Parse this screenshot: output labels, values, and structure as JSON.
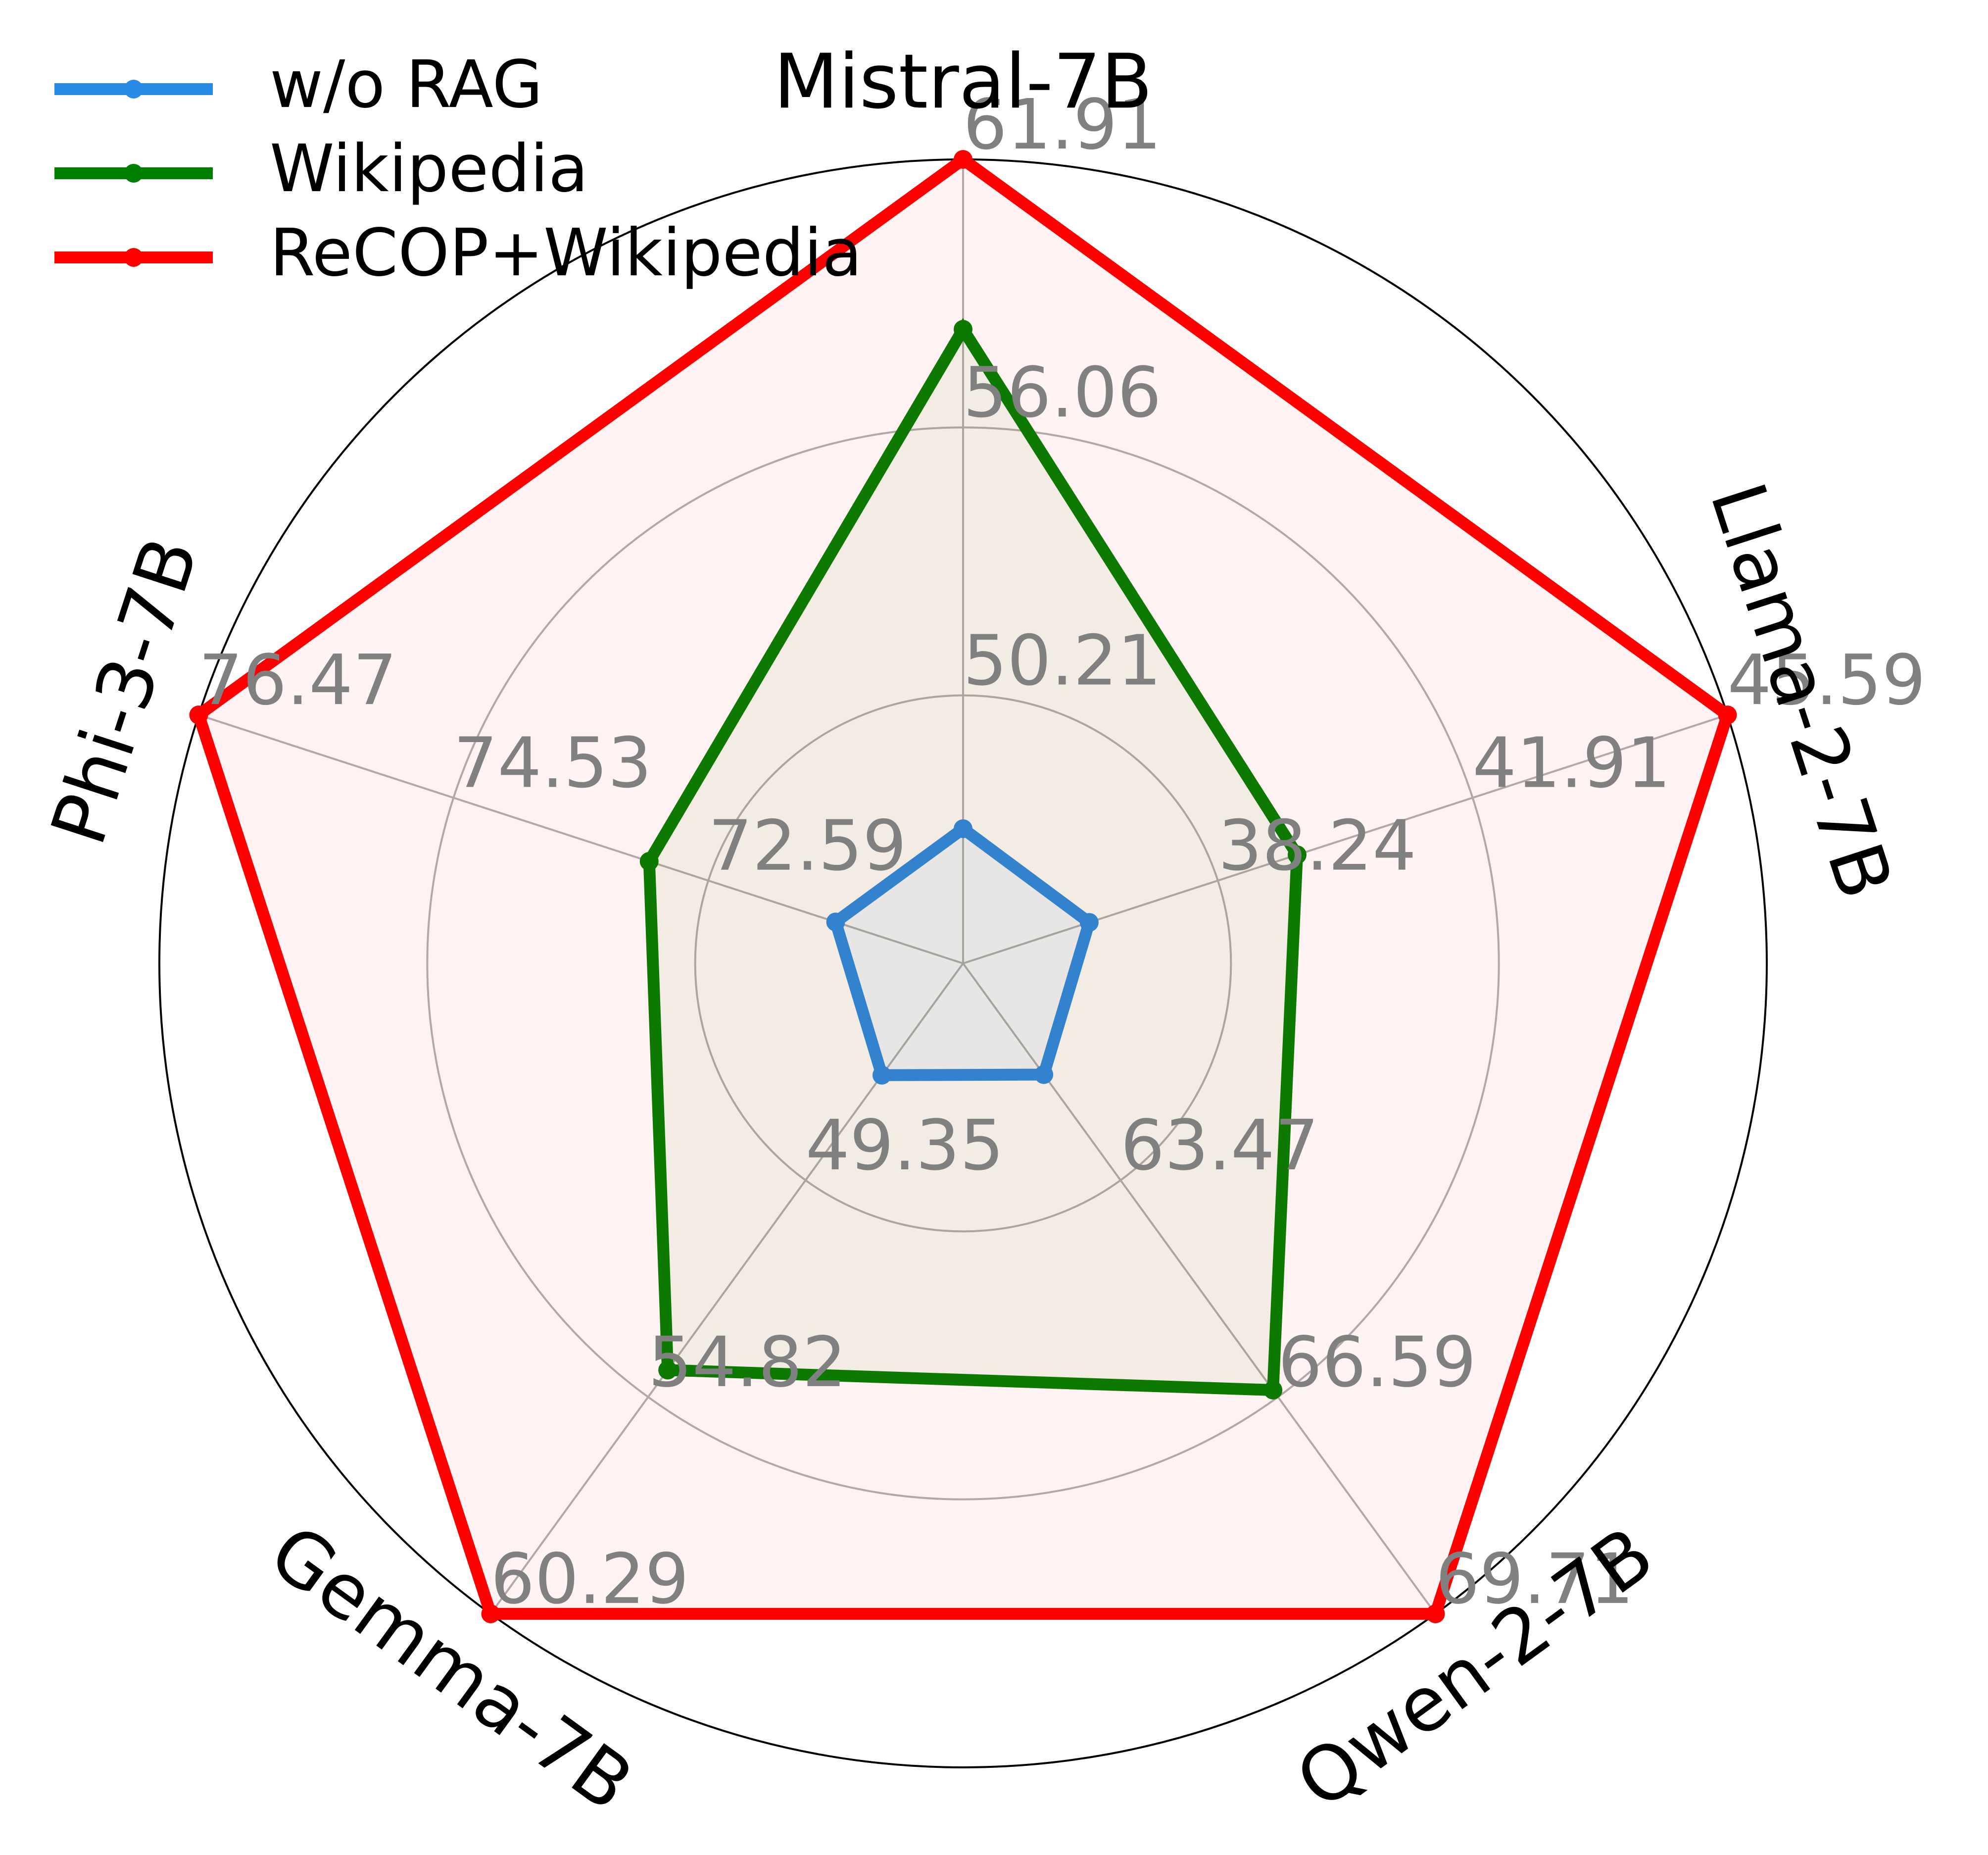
{
  "chart_data": {
    "type": "radar",
    "categories": [
      "Mistral-7B",
      "Llama-2-7B",
      "Qwen-2-7B",
      "Gemma-7B",
      "Phi-3-7B"
    ],
    "axes": [
      {
        "lim": [
          44.36,
          61.91
        ],
        "ticks": [
          50.21,
          56.06,
          61.91
        ]
      },
      {
        "lim": [
          34.56,
          45.59
        ],
        "ticks": [
          38.24,
          41.91,
          45.59
        ]
      },
      {
        "lim": [
          60.35,
          69.71
        ],
        "ticks": [
          63.47,
          66.59,
          69.71
        ]
      },
      {
        "lim": [
          43.88,
          60.29
        ],
        "ticks": [
          49.35,
          54.82,
          60.29
        ]
      },
      {
        "lim": [
          70.65,
          76.47
        ],
        "ticks": [
          72.59,
          74.53,
          76.47
        ]
      }
    ],
    "series": [
      {
        "name": "w/o RAG",
        "color": "#2a8be6",
        "values": [
          47.3,
          36.38,
          61.95,
          46.7,
          71.62
        ]
      },
      {
        "name": "Wikipedia",
        "color": "#008000",
        "values": [
          58.2,
          39.38,
          66.49,
          54.14,
          73.04
        ]
      },
      {
        "name": "ReCOP+Wikipedia",
        "color": "#ff0000",
        "values": [
          61.91,
          45.59,
          69.71,
          60.29,
          76.47
        ]
      }
    ],
    "legend": "upper left",
    "grid": true
  }
}
